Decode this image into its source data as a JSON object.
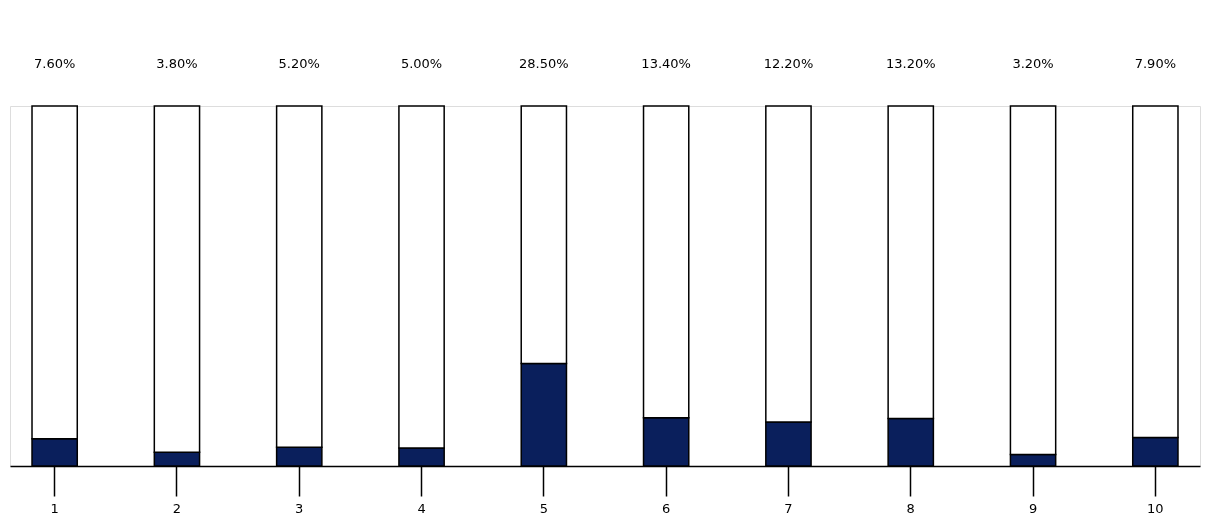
{
  "chart_data": {
    "type": "bar",
    "stacked": true,
    "categories": [
      "1",
      "2",
      "3",
      "4",
      "5",
      "6",
      "7",
      "8",
      "9",
      "10"
    ],
    "series": [
      {
        "color": "#0a1f5c",
        "values": [
          7.6,
          3.8,
          5.2,
          5.0,
          28.5,
          13.4,
          12.2,
          13.2,
          3.2,
          7.9
        ],
        "value_labels": [
          "7.60%",
          "3.80%",
          "5.20%",
          "5.00%",
          "28.50%",
          "13.40%",
          "12.20%",
          "13.20%",
          "3.20%",
          "7.90%"
        ]
      },
      {
        "color": "#ffffff",
        "values": [
          92.4,
          96.2,
          94.8,
          95.0,
          71.5,
          86.6,
          87.8,
          86.8,
          96.8,
          92.1
        ]
      }
    ],
    "ylim": [
      0,
      100
    ],
    "tick_labels": "x"
  }
}
